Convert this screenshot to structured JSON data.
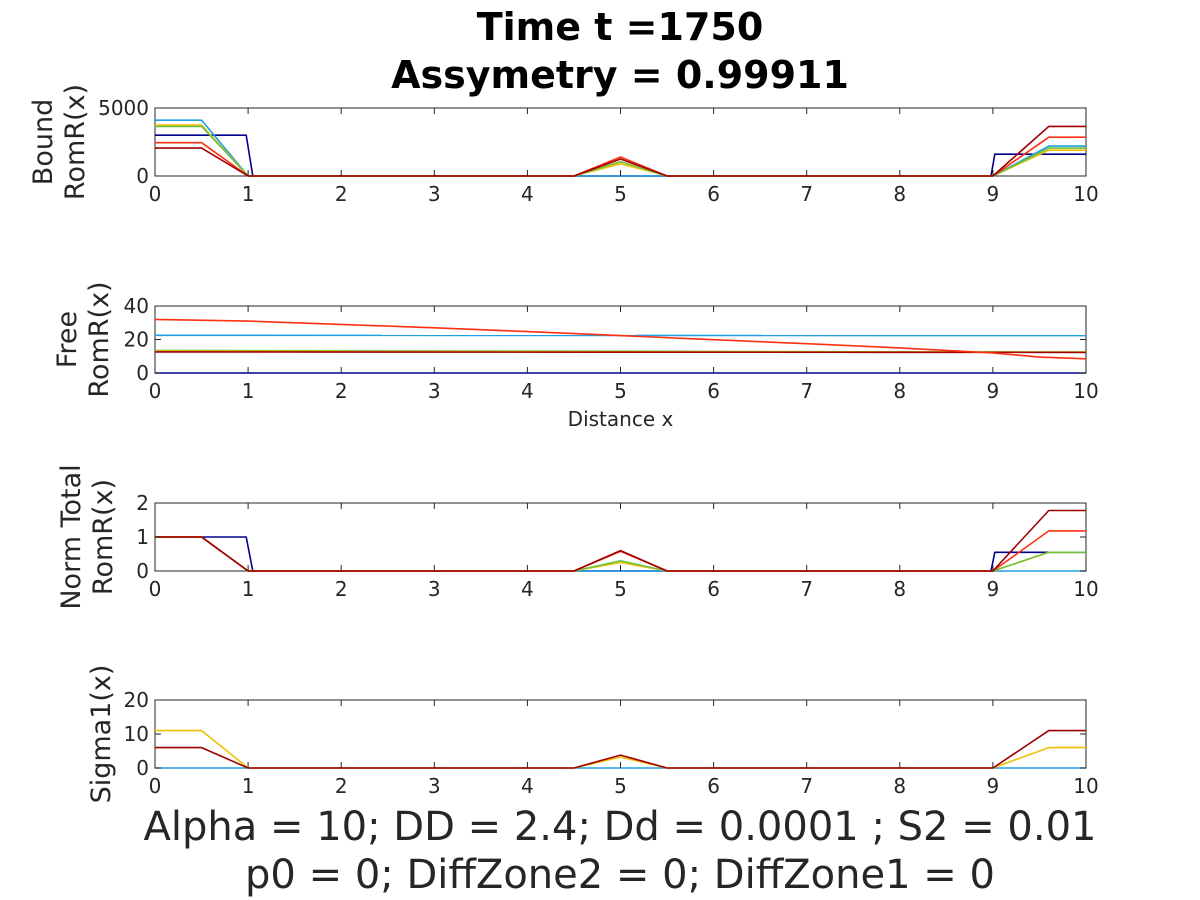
{
  "title": {
    "line1": "Time t =1750",
    "line2": "Assymetry = 0.99911"
  },
  "footer": {
    "line1": "Alpha = 10;  DD =  2.4; Dd = 0.0001 ; S2 = 0.01",
    "line2": "p0 = 0; DiffZone2 = 0; DiffZone1 = 0"
  },
  "chart_data": [
    {
      "type": "line",
      "ylabel": [
        "Bound",
        "RomR(x)"
      ],
      "xlabel": "",
      "xlim": [
        0,
        10
      ],
      "ylim": [
        0,
        5000
      ],
      "xticks": [
        0,
        1,
        2,
        3,
        4,
        5,
        6,
        7,
        8,
        9,
        10
      ],
      "yticks": [
        0,
        5000
      ],
      "grid": false,
      "series": [
        {
          "color": "#00008f",
          "x": [
            0,
            0.98,
            1.05,
            4.5,
            5,
            5.5,
            8.98,
            9.02,
            10
          ],
          "y": [
            3000,
            3000,
            0,
            0,
            0,
            0,
            0,
            1600,
            1600
          ]
        },
        {
          "color": "#1fa0e0",
          "x": [
            0,
            0.5,
            1.0,
            4.5,
            5,
            5.5,
            9.0,
            9.6,
            10
          ],
          "y": [
            4100,
            4100,
            0,
            0,
            0,
            0,
            0,
            2200,
            2200
          ]
        },
        {
          "color": "#f0c000",
          "x": [
            0,
            0.5,
            1.0,
            4.5,
            5,
            5.5,
            9.0,
            9.6,
            10
          ],
          "y": [
            3750,
            3750,
            0,
            0,
            900,
            0,
            0,
            1900,
            1900
          ]
        },
        {
          "color": "#70c040",
          "x": [
            0,
            0.5,
            1.0,
            4.5,
            5,
            5.5,
            9.0,
            9.6,
            10
          ],
          "y": [
            3650,
            3650,
            0,
            0,
            1050,
            0,
            0,
            2050,
            2050
          ]
        },
        {
          "color": "#ff3010",
          "x": [
            0,
            0.5,
            1.0,
            4.5,
            5,
            5.5,
            9.0,
            9.6,
            10
          ],
          "y": [
            2450,
            2450,
            0,
            0,
            1400,
            0,
            0,
            2850,
            2850
          ]
        },
        {
          "color": "#a00000",
          "x": [
            0,
            0.5,
            1.0,
            4.5,
            5,
            5.5,
            9.0,
            9.6,
            10
          ],
          "y": [
            2050,
            2050,
            0,
            0,
            1250,
            0,
            0,
            3650,
            3650
          ]
        }
      ]
    },
    {
      "type": "line",
      "ylabel": [
        "Free",
        "RomR(x)"
      ],
      "xlabel": "Distance x",
      "xlim": [
        0,
        10
      ],
      "ylim": [
        0,
        40
      ],
      "xticks": [
        0,
        1,
        2,
        3,
        4,
        5,
        6,
        7,
        8,
        9,
        10
      ],
      "yticks": [
        0,
        20,
        40
      ],
      "grid": false,
      "series": [
        {
          "color": "#00008f",
          "x": [
            0,
            10
          ],
          "y": [
            0,
            0
          ]
        },
        {
          "color": "#1fa0e0",
          "x": [
            0,
            10
          ],
          "y": [
            22.5,
            22.3
          ]
        },
        {
          "color": "#70c040",
          "x": [
            0,
            10
          ],
          "y": [
            13.5,
            12.5
          ]
        },
        {
          "color": "#f0c000",
          "x": [
            0,
            5,
            10
          ],
          "y": [
            13.0,
            12.6,
            12.4
          ]
        },
        {
          "color": "#a00000",
          "x": [
            0,
            5,
            10
          ],
          "y": [
            12.6,
            12.4,
            12.3
          ]
        },
        {
          "color": "#ff3010",
          "x": [
            0,
            1,
            2,
            3,
            4,
            5,
            6,
            7,
            8,
            9,
            9.5,
            10
          ],
          "y": [
            32.0,
            31.0,
            29.0,
            27.0,
            24.7,
            22.3,
            19.9,
            17.5,
            15.0,
            12.0,
            9.5,
            8.5
          ]
        }
      ]
    },
    {
      "type": "line",
      "ylabel": [
        "Norm Total",
        "RomR(x)"
      ],
      "xlabel": "",
      "xlim": [
        0,
        10
      ],
      "ylim": [
        0,
        2
      ],
      "xticks": [
        0,
        1,
        2,
        3,
        4,
        5,
        6,
        7,
        8,
        9,
        10
      ],
      "yticks": [
        0,
        1,
        2
      ],
      "grid": false,
      "series": [
        {
          "color": "#00008f",
          "x": [
            0,
            0.98,
            1.05,
            8.98,
            9.02,
            10
          ],
          "y": [
            1,
            1,
            0,
            0,
            0.55,
            0.55
          ]
        },
        {
          "color": "#1fa0e0",
          "x": [
            0,
            0.5,
            1.0,
            4.5,
            5,
            5.5,
            10
          ],
          "y": [
            1,
            1,
            0,
            0,
            0,
            0,
            0
          ]
        },
        {
          "color": "#f0c000",
          "x": [
            0,
            0.5,
            1.0,
            4.5,
            5,
            5.5,
            9.0,
            9.6,
            10
          ],
          "y": [
            1,
            1,
            0,
            0,
            0.25,
            0,
            0,
            0.55,
            0.55
          ]
        },
        {
          "color": "#70c040",
          "x": [
            0,
            0.5,
            1.0,
            4.5,
            5,
            5.5,
            9.0,
            9.6,
            10
          ],
          "y": [
            1,
            1,
            0,
            0,
            0.3,
            0,
            0,
            0.55,
            0.55
          ]
        },
        {
          "color": "#ff3010",
          "x": [
            0,
            0.5,
            1.0,
            4.5,
            5,
            5.5,
            9.0,
            9.6,
            10
          ],
          "y": [
            1,
            1,
            0,
            0,
            0.58,
            0,
            0,
            1.18,
            1.18
          ]
        },
        {
          "color": "#a00000",
          "x": [
            0,
            0.5,
            1.0,
            4.5,
            5,
            5.5,
            9.0,
            9.6,
            10
          ],
          "y": [
            1,
            1,
            0,
            0,
            0.6,
            0,
            0,
            1.78,
            1.78
          ]
        }
      ]
    },
    {
      "type": "line",
      "ylabel": [
        "Sigma1(x)"
      ],
      "xlabel": "",
      "xlim": [
        0,
        10
      ],
      "ylim": [
        0,
        20
      ],
      "xticks": [
        0,
        1,
        2,
        3,
        4,
        5,
        6,
        7,
        8,
        9,
        10
      ],
      "yticks": [
        0,
        10,
        20
      ],
      "grid": false,
      "series": [
        {
          "color": "#1fa0e0",
          "x": [
            0,
            10
          ],
          "y": [
            0,
            0
          ]
        },
        {
          "color": "#f0c000",
          "x": [
            0,
            0.5,
            1.0,
            4.5,
            5,
            5.5,
            9.0,
            9.6,
            10
          ],
          "y": [
            11,
            11,
            0,
            0,
            3.2,
            0,
            0,
            6,
            6
          ]
        },
        {
          "color": "#a00000",
          "x": [
            0,
            0.5,
            1.0,
            4.5,
            5,
            5.5,
            9.0,
            9.6,
            10
          ],
          "y": [
            6,
            6,
            0,
            0,
            3.8,
            0,
            0,
            11,
            11
          ]
        }
      ]
    }
  ]
}
